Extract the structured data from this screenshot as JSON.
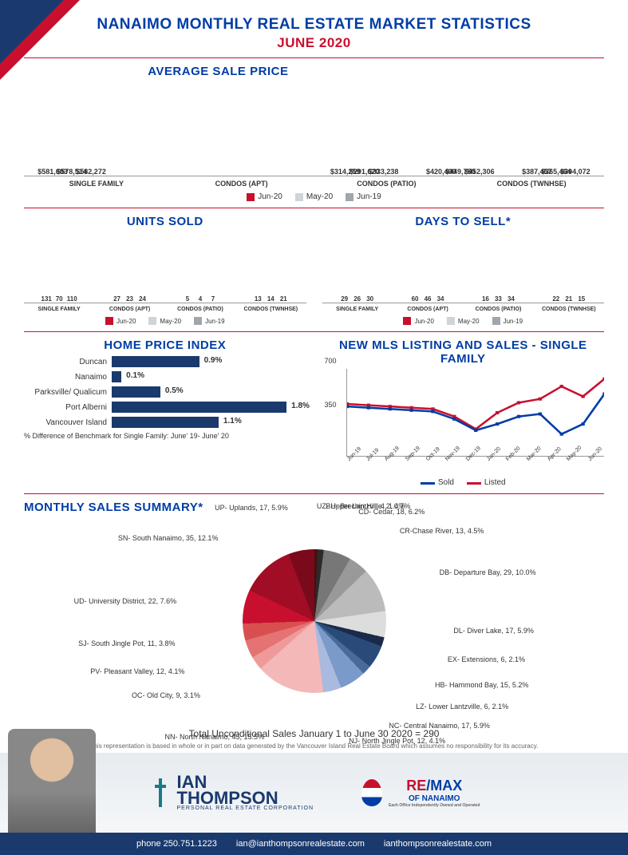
{
  "header": {
    "title": "NANAIMO MONTHLY REAL ESTATE MARKET STATISTICS",
    "subtitle": "JUNE 2020"
  },
  "colors": {
    "series": [
      "#c8102e",
      "#cfd4d9",
      "#9fa6ad"
    ],
    "hbar": "#1a3a6e",
    "line_sold": "#003da5",
    "line_listed": "#c8102e",
    "divider": "#c8102e",
    "title": "#003da5"
  },
  "avg_sale_price": {
    "title": "AVERAGE SALE PRICE",
    "categories": [
      "SINGLE FAMILY",
      "CONDOS (APT)",
      "CONDOS (PATIO)",
      "CONDOS (TWNHSE)"
    ],
    "series_labels": [
      "Jun-20",
      "May-20",
      "Jun-19"
    ],
    "values": [
      [
        581603,
        578514,
        582272
      ],
      [
        314259,
        291620,
        333238
      ],
      [
        420400,
        449750,
        452306
      ],
      [
        387457,
        365464,
        394072
      ]
    ],
    "ymax": 600000
  },
  "units_sold": {
    "title": "UNITS SOLD",
    "categories": [
      "SINGLE FAMILY",
      "CONDOS (APT)",
      "CONDOS (PATIO)",
      "CONDOS (TWNHSE)"
    ],
    "series_labels": [
      "Jun-20",
      "May-20",
      "Jun-19"
    ],
    "values": [
      [
        131,
        70,
        110
      ],
      [
        27,
        23,
        24
      ],
      [
        5,
        4,
        7
      ],
      [
        13,
        14,
        21
      ]
    ],
    "ymax": 140
  },
  "days_to_sell": {
    "title": "DAYS TO SELL*",
    "categories": [
      "SINGLE FAMILY",
      "CONDOS (APT)",
      "CONDOS (PATIO)",
      "CONDOS (TWNHSE)"
    ],
    "series_labels": [
      "Jun-20",
      "May-20",
      "Jun-19"
    ],
    "values": [
      [
        29,
        26,
        30
      ],
      [
        60,
        46,
        34
      ],
      [
        16,
        33,
        34
      ],
      [
        22,
        21,
        15
      ]
    ],
    "ymax": 65
  },
  "hpi": {
    "title": "HOME PRICE INDEX",
    "rows": [
      {
        "label": "Duncan",
        "value": 0.9
      },
      {
        "label": "Nanaimo",
        "value": 0.1
      },
      {
        "label": "Parksville/ Qualicum",
        "value": 0.5
      },
      {
        "label": "Port Alberni",
        "value": 1.8
      },
      {
        "label": "Vancouver Island",
        "value": 1.1
      }
    ],
    "xmax": 2.0,
    "caption": "% Difference of Benchmark for Single Family: June' 19- June' 20"
  },
  "mls": {
    "title": "NEW MLS LISTING AND SALES - SINGLE FAMILY",
    "yticks": [
      350,
      700
    ],
    "months": [
      "Jun-19",
      "Jul-19",
      "Aug-19",
      "Sep-19",
      "Oct-19",
      "Nov-19",
      "Dec-19",
      "Jan-20",
      "Feb-20",
      "Mar-20",
      "Apr-20",
      "May-20",
      "Jun-20"
    ],
    "sold": [
      400,
      390,
      380,
      370,
      360,
      300,
      210,
      260,
      320,
      340,
      180,
      260,
      500
    ],
    "listed": [
      420,
      410,
      400,
      390,
      380,
      320,
      220,
      350,
      430,
      460,
      560,
      480,
      620
    ],
    "ymax": 700,
    "legend": [
      "Sold",
      "Listed"
    ]
  },
  "pie": {
    "title": "MONTHLY SALES SUMMARY*",
    "slices": [
      {
        "label": "UZ- Upper Lantzville, 2, 0.7%",
        "value": 0.7,
        "color": "#4a0d0d"
      },
      {
        "label": "BH- Brechin Hill, 4, 1.4%",
        "value": 1.4,
        "color": "#2b2b2b"
      },
      {
        "label": "CD- Cedar, 18, 6.2%",
        "value": 6.2,
        "color": "#777"
      },
      {
        "label": "CR-Chase River, 13, 4.5%",
        "value": 4.5,
        "color": "#999"
      },
      {
        "label": "DB- Departure Bay, 29, 10.0%",
        "value": 10.0,
        "color": "#bbb"
      },
      {
        "label": "DL- Diver Lake, 17, 5.9%",
        "value": 5.9,
        "color": "#ddd"
      },
      {
        "label": "EX- Extensions, 6, 2.1%",
        "value": 2.1,
        "color": "#1a2a4a"
      },
      {
        "label": "HB- Hammond Bay, 15, 5.2%",
        "value": 5.2,
        "color": "#2a4a7a"
      },
      {
        "label": "LZ- Lower Lantzville, 6, 2.1%",
        "value": 2.1,
        "color": "#4a6a9a"
      },
      {
        "label": "NC- Central Nanaimo, 17, 5.9%",
        "value": 5.9,
        "color": "#7a9aca"
      },
      {
        "label": "NJ- North Jingle Pot, 12, 4.1%",
        "value": 4.1,
        "color": "#aabade"
      },
      {
        "label": "NN- North Nanaimo, 45, 15.5%",
        "value": 15.5,
        "color": "#f5b8b8"
      },
      {
        "label": "OC- Old City, 9, 3.1%",
        "value": 3.1,
        "color": "#ef9a9a"
      },
      {
        "label": "PV- Pleasant Valley, 12, 4.1%",
        "value": 4.1,
        "color": "#e57373"
      },
      {
        "label": "SJ- South Jingle Pot, 11, 3.8%",
        "value": 3.8,
        "color": "#d94f4f"
      },
      {
        "label": "UD- University District, 22, 7.6%",
        "value": 7.6,
        "color": "#c8102e"
      },
      {
        "label": "SN- South Nanaimo, 35, 12.1%",
        "value": 12.1,
        "color": "#a00d24"
      },
      {
        "label": "UP- Uplands, 17, 5.9%",
        "value": 5.9,
        "color": "#7a0a1b"
      }
    ],
    "total": "Total Unconditional Sales January 1 to June 30 2020 = 290",
    "disclaimer": "This representation is based in whole or in part on data generated by the Vancouver Island Real Estate Board which assumes no responsibility for its accuracy."
  },
  "brand": {
    "ian_first": "IAN",
    "ian_last": "THOMPSON",
    "ian_tag": "PERSONAL REAL ESTATE CORPORATION",
    "remax": "RE/MAX",
    "remax_sub": "OF NANAIMO",
    "remax_tag": "Each Office Independently Owned and Operated"
  },
  "footer": {
    "phone": "phone 250.751.1223",
    "email": "ian@ianthompsonrealestate.com",
    "web": "ianthompsonrealestate.com"
  }
}
